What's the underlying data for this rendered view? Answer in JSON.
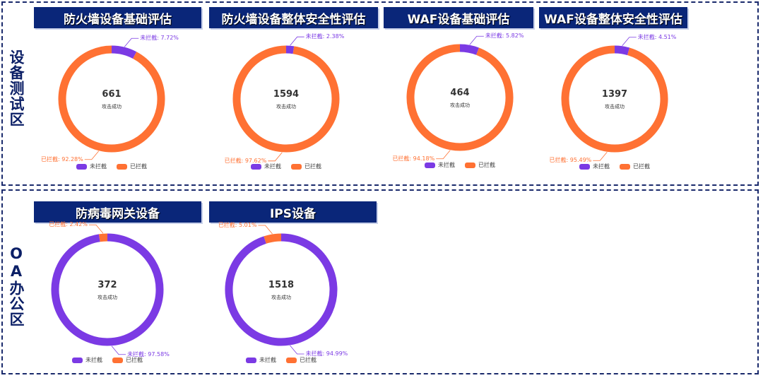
{
  "colors": {
    "not_blocked": "#7b3ae4",
    "blocked": "#ff7133",
    "title_bg": "#0a2679"
  },
  "legend": {
    "not_blocked": "未拦截",
    "blocked": "已拦截"
  },
  "center_label": "攻击成功",
  "zones": [
    {
      "label": "设备测试区",
      "charts": [
        {
          "title": "防火墙设备基础评估",
          "total": "661",
          "not_blocked_pct": 7.72,
          "blocked_pct": 92.28,
          "not_blocked_text": "未拦截: 7.72%",
          "blocked_text": "已拦截: 92.28%"
        },
        {
          "title": "防火墙设备整体安全性评估",
          "total": "1594",
          "not_blocked_pct": 2.38,
          "blocked_pct": 97.62,
          "not_blocked_text": "未拦截: 2.38%",
          "blocked_text": "已拦截: 97.62%"
        },
        {
          "title": "WAF设备基础评估",
          "total": "464",
          "not_blocked_pct": 5.82,
          "blocked_pct": 94.18,
          "not_blocked_text": "未拦截: 5.82%",
          "blocked_text": "已拦截: 94.18%"
        },
        {
          "title": "WAF设备整体安全性评估",
          "total": "1397",
          "not_blocked_pct": 4.51,
          "blocked_pct": 95.49,
          "not_blocked_text": "未拦截: 4.51%",
          "blocked_text": "已拦截: 95.49%"
        }
      ]
    },
    {
      "label": "OA办公区",
      "charts": [
        {
          "title": "防病毒网关设备",
          "total": "372",
          "not_blocked_pct": 97.58,
          "blocked_pct": 2.42,
          "not_blocked_text": "未拦截: 97.58%",
          "blocked_text": "已拦截: 2.42%"
        },
        {
          "title": "IPS设备",
          "total": "1518",
          "not_blocked_pct": 94.99,
          "blocked_pct": 5.01,
          "not_blocked_text": "未拦截: 94.99%",
          "blocked_text": "已拦截: 5.01%"
        }
      ]
    }
  ]
}
